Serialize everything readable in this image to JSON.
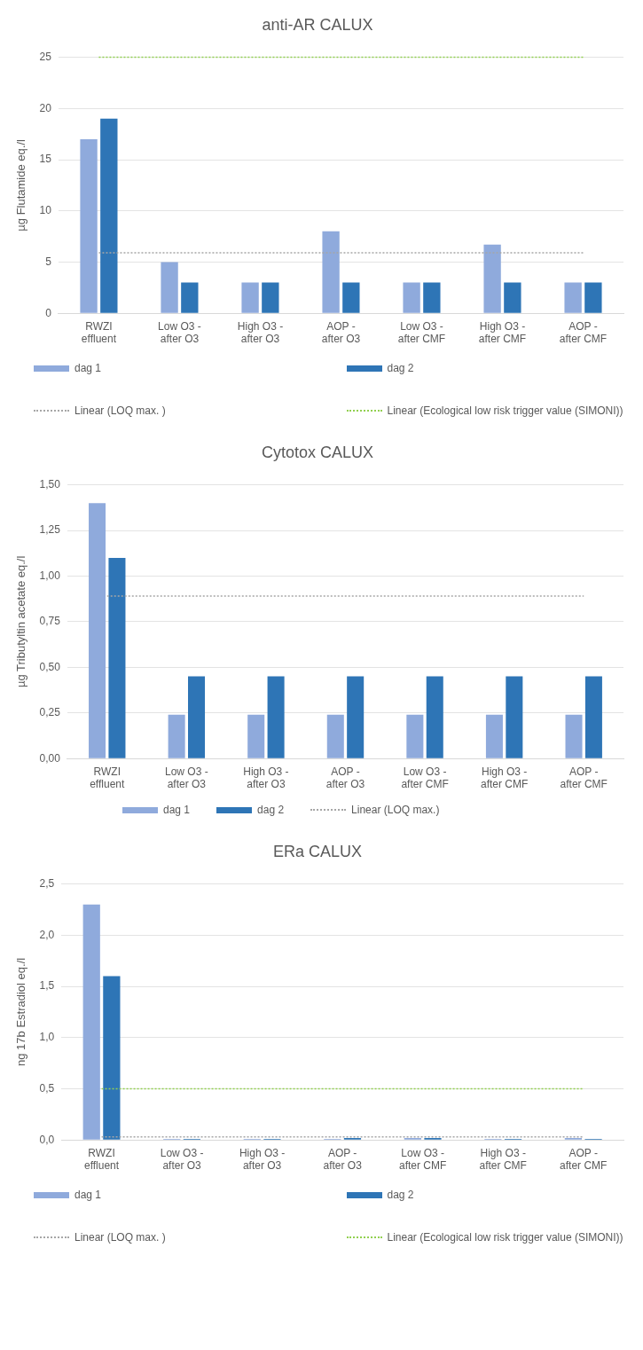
{
  "chart_data": [
    {
      "type": "bar",
      "title": "anti-AR CALUX",
      "ylabel": "µg Flutamide eq./l",
      "categories": [
        "RWZI effluent",
        "Low O3 - after O3",
        "High O3 - after O3",
        "AOP - after O3",
        "Low O3 - after CMF",
        "High O3 - after CMF",
        "AOP - after CMF"
      ],
      "series": [
        {
          "name": "dag 1",
          "color": "#8faadc",
          "values": [
            17,
            5,
            3,
            8,
            3,
            6.7,
            3
          ]
        },
        {
          "name": "dag 2",
          "color": "#2e75b6",
          "values": [
            19,
            3,
            3,
            3,
            3,
            3,
            3
          ]
        }
      ],
      "ylim": [
        0,
        25
      ],
      "yticks": [
        0,
        5,
        10,
        15,
        20,
        25
      ],
      "grid": "y",
      "legend": "bottom",
      "ref_lines": [
        {
          "axis": "y",
          "value": 5.9,
          "label": "Linear (LOQ max. )",
          "color": "#a6a6a6",
          "line_style": "dotted"
        },
        {
          "axis": "y",
          "value": 25,
          "label": "Linear (Ecological low risk trigger value (SIMONI))",
          "color": "#92d050",
          "line_style": "dotted"
        }
      ]
    },
    {
      "type": "bar",
      "title": "Cytotox CALUX",
      "ylabel": "µg Tributyltin acetate eq./l",
      "categories": [
        "RWZI effluent",
        "Low O3 - after O3",
        "High O3 - after O3",
        "AOP - after O3",
        "Low O3 - after CMF",
        "High O3 - after CMF",
        "AOP - after CMF"
      ],
      "series": [
        {
          "name": "dag 1",
          "color": "#8faadc",
          "values": [
            1.4,
            0.24,
            0.24,
            0.24,
            0.24,
            0.24,
            0.24
          ]
        },
        {
          "name": "dag 2",
          "color": "#2e75b6",
          "values": [
            1.1,
            0.45,
            0.45,
            0.45,
            0.45,
            0.45,
            0.45
          ]
        }
      ],
      "ylim": [
        0,
        1.5
      ],
      "yticks": [
        {
          "value": 0,
          "label": "0,00"
        },
        {
          "value": 0.25,
          "label": "0,25"
        },
        {
          "value": 0.5,
          "label": "0,50"
        },
        {
          "value": 0.75,
          "label": "0,75"
        },
        {
          "value": 1,
          "label": "1,00"
        },
        {
          "value": 1.25,
          "label": "1,25"
        },
        {
          "value": 1.5,
          "label": "1,50"
        }
      ],
      "grid": "y",
      "legend": "bottom",
      "ref_lines": [
        {
          "axis": "y",
          "value": 0.89,
          "label": "Linear (LOQ max.)",
          "color": "#a6a6a6",
          "line_style": "dotted"
        }
      ]
    },
    {
      "type": "bar",
      "title": "ERa CALUX",
      "ylabel": "ng 17b Estradiol eq./l",
      "categories": [
        "RWZI effluent",
        "Low O3 - after O3",
        "High O3 - after O3",
        "AOP - after O3",
        "Low O3 - after CMF",
        "High O3 - after CMF",
        "AOP - after CMF"
      ],
      "series": [
        {
          "name": "dag 1",
          "color": "#8faadc",
          "values": [
            2.3,
            0.01,
            0.01,
            0.01,
            0.02,
            0.01,
            0.02
          ]
        },
        {
          "name": "dag 2",
          "color": "#2e75b6",
          "values": [
            1.6,
            0.01,
            0.01,
            0.02,
            0.02,
            0.01,
            0.01
          ]
        }
      ],
      "ylim": [
        0,
        2.5
      ],
      "yticks": [
        {
          "value": 0,
          "label": "0,0"
        },
        {
          "value": 0.5,
          "label": "0,5"
        },
        {
          "value": 1,
          "label": "1,0"
        },
        {
          "value": 1.5,
          "label": "1,5"
        },
        {
          "value": 2,
          "label": "2,0"
        },
        {
          "value": 2.5,
          "label": "2,5"
        }
      ],
      "grid": "y",
      "legend": "bottom",
      "ref_lines": [
        {
          "axis": "y",
          "value": 0.03,
          "label": "Linear (LOQ max. )",
          "color": "#a6a6a6",
          "line_style": "dotted"
        },
        {
          "axis": "y",
          "value": 0.5,
          "label": "Linear (Ecological low risk trigger value (SIMONI))",
          "color": "#92d050",
          "line_style": "dotted"
        }
      ]
    }
  ]
}
